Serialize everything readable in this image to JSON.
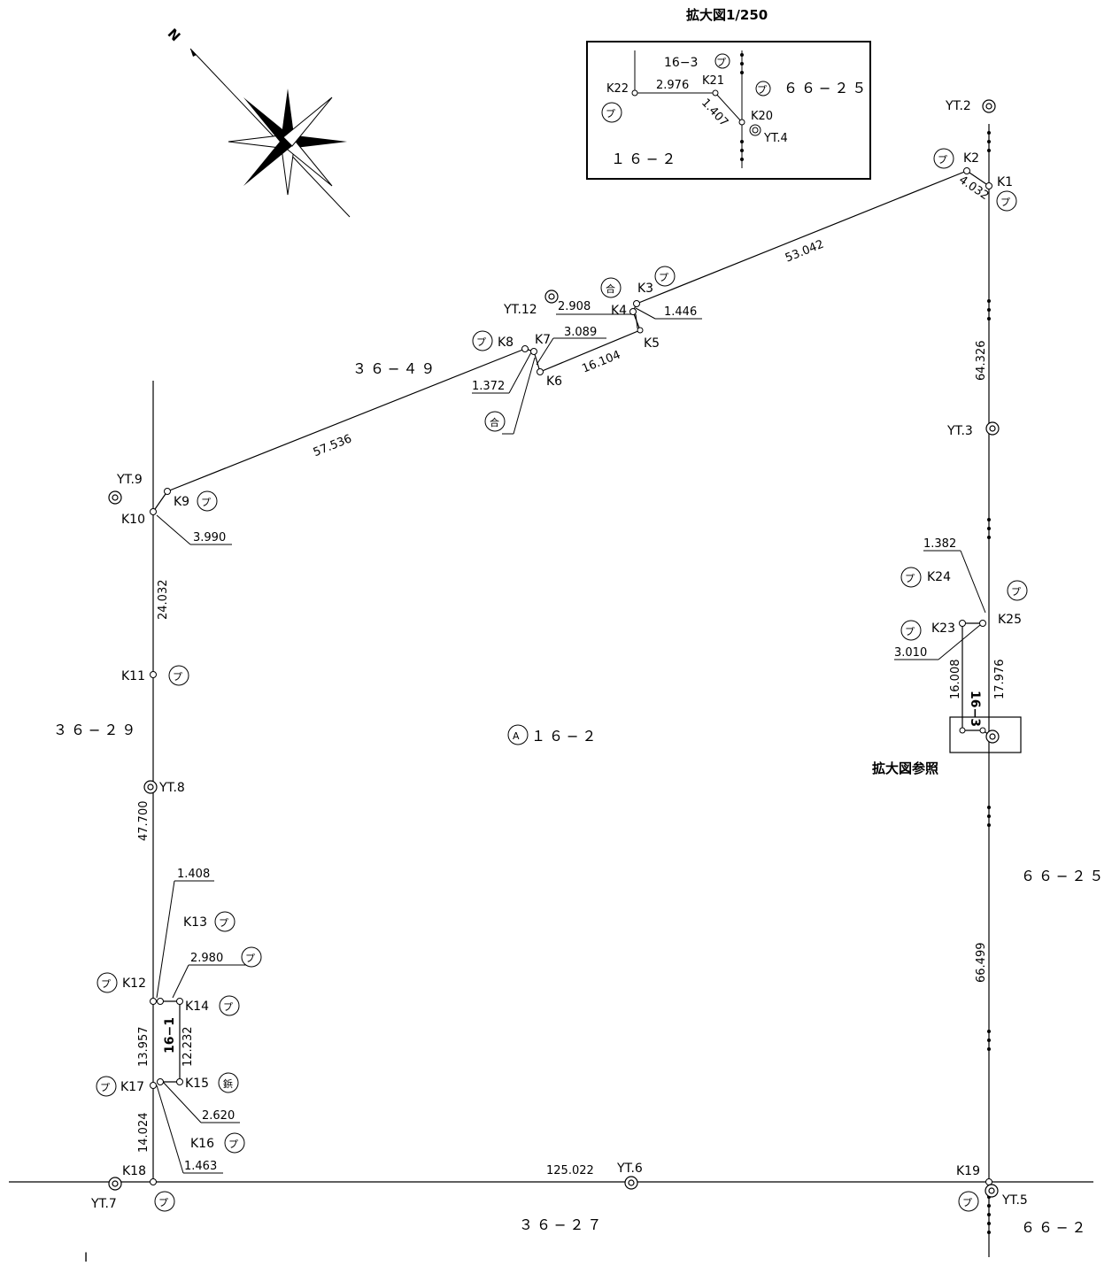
{
  "inset": {
    "title": "拡大図1/250",
    "parcel_top": "16−3",
    "parcel_right": "６６−２５",
    "parcel_bottom": "１６−２",
    "dist_k22_k21": "2.976",
    "dist_k21_k20": "1.407"
  },
  "reference_label": "拡大図参照",
  "parcels": {
    "p36_49": "３６−４９",
    "p36_29": "３６−２９",
    "p16_2": "１６−２",
    "p16_2_marker": "A",
    "p66_25": "６６−２５",
    "p36_27": "３６−２７",
    "p66_2": "６６−２",
    "p16_1": "16−1",
    "p16_3": "16−3"
  },
  "markers": {
    "plastic": "プ",
    "alloy": "合",
    "nail": "鋲"
  },
  "points": {
    "K1": "K1",
    "K2": "K2",
    "K3": "K3",
    "K4": "K4",
    "K5": "K5",
    "K6": "K6",
    "K7": "K7",
    "K8": "K8",
    "K9": "K9",
    "K10": "K10",
    "K11": "K11",
    "K12": "K12",
    "K13": "K13",
    "K14": "K14",
    "K15": "K15",
    "K16": "K16",
    "K17": "K17",
    "K18": "K18",
    "K19": "K19",
    "K20": "K20",
    "K21": "K21",
    "K22": "K22",
    "K23": "K23",
    "K24": "K24",
    "K25": "K25"
  },
  "benchmarks": {
    "YT2": "YT.2",
    "YT3": "YT.3",
    "YT4": "YT.4",
    "YT5": "YT.5",
    "YT6": "YT.6",
    "YT7": "YT.7",
    "YT8": "YT.8",
    "YT9": "YT.9",
    "YT12": "YT.12"
  },
  "distances": {
    "k1_k2": "4.032",
    "k2_k3": "53.042",
    "k1_k25": "64.326",
    "k3_k4": "1.446",
    "k4_k5": "2.908",
    "k5_k6": "16.104",
    "k6_k7": "3.089",
    "k7_k8": "1.372",
    "k8_k9": "57.536",
    "k9_k10": "3.990",
    "k10_k11": "24.032",
    "k11_k12": "47.700",
    "k12_k13": "1.408",
    "k13_k14": "2.980",
    "k14_k15": "12.232",
    "k12_k17": "13.957",
    "k15_k16": "2.620",
    "k16_k17": "1.463",
    "k17_k18": "14.024",
    "k18_k19": "125.022",
    "k19_k25": "66.499",
    "k24_k25": "1.382",
    "k23_k24": "3.010",
    "k23_k22": "16.008",
    "k25_k20": "17.976"
  },
  "footer_mark": "I"
}
